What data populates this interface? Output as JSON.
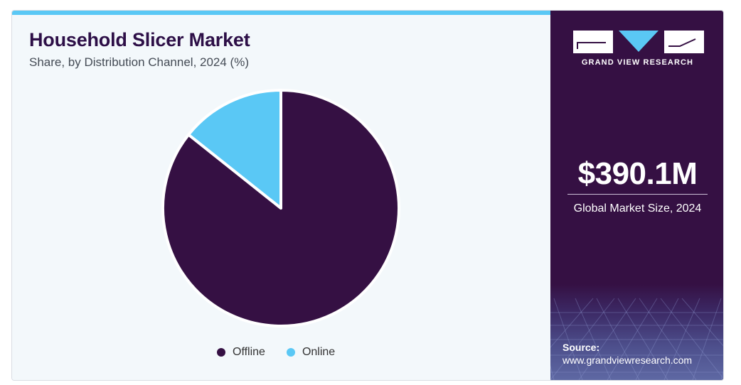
{
  "header": {
    "title": "Household Slicer Market",
    "subtitle": "Share, by Distribution Channel, 2024 (%)"
  },
  "colors": {
    "accent_bar": "#5ac8f5",
    "title": "#2d0f47",
    "panel": "#351043"
  },
  "chart_data": {
    "type": "pie",
    "categories": [
      "Offline",
      "Online"
    ],
    "values": [
      85.7,
      14.3
    ],
    "colors": [
      "#351043",
      "#5ac8f5"
    ],
    "start_angle_deg": 0,
    "direction": "counterclockwise",
    "legend_position": "bottom",
    "title": "Household Slicer Market",
    "subtitle": "Share, by Distribution Channel, 2024 (%)"
  },
  "side_panel": {
    "brand": "GRAND VIEW RESEARCH",
    "logo_icon": "gvr-logo-icon",
    "market_value": "$390.1M",
    "market_label": "Global Market Size, 2024",
    "source_label": "Source:",
    "source_url": "www.grandviewresearch.com"
  }
}
